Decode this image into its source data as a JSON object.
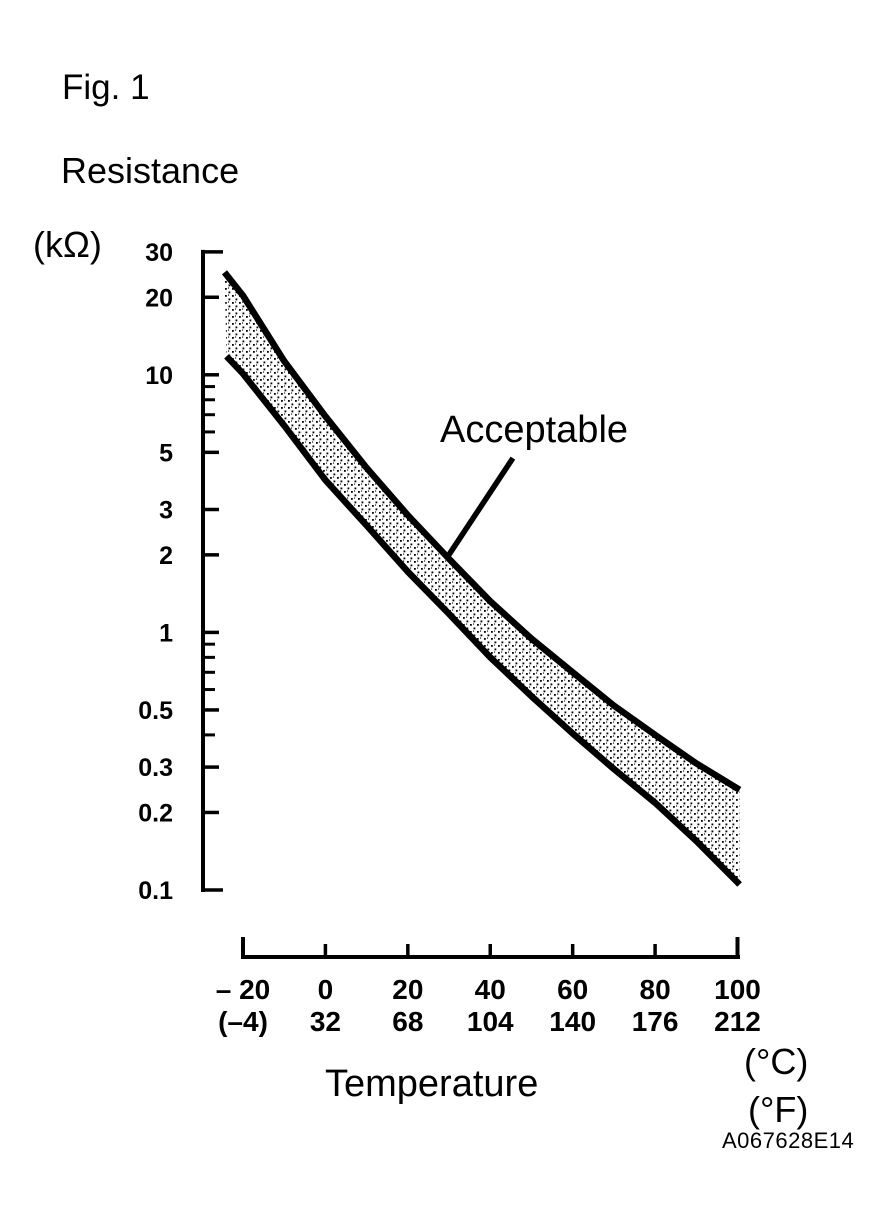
{
  "figure": {
    "fig_label": "Fig. 1",
    "code": "A067628E14"
  },
  "colors": {
    "ink": "#000000",
    "paper": "#ffffff"
  },
  "chart_data": {
    "type": "area",
    "title": "",
    "ylabel": "Resistance",
    "y_unit": "(kΩ)",
    "xlabel": "Temperature",
    "x_unit_c": "(°C)",
    "x_unit_f": "(°F)",
    "annotation": "Acceptable",
    "y_scale": "log",
    "ylim": [
      0.1,
      30
    ],
    "xlim_celsius": [
      -20,
      100
    ],
    "grid": false,
    "legend": "none",
    "y_ticks_major": [
      {
        "value": 30,
        "label": "30"
      },
      {
        "value": 20,
        "label": "20"
      },
      {
        "value": 10,
        "label": "10"
      },
      {
        "value": 5,
        "label": "5"
      },
      {
        "value": 3,
        "label": "3"
      },
      {
        "value": 2,
        "label": "2"
      },
      {
        "value": 1,
        "label": "1"
      },
      {
        "value": 0.5,
        "label": "0.5"
      },
      {
        "value": 0.3,
        "label": "0.3"
      },
      {
        "value": 0.2,
        "label": "0.2"
      },
      {
        "value": 0.1,
        "label": "0.1"
      }
    ],
    "y_ticks_minor": [
      9,
      8,
      7,
      6,
      0.9,
      0.8,
      0.7,
      0.6,
      0.4
    ],
    "x_ticks": [
      {
        "t": -20,
        "celsius": "– 20",
        "fahrenheit": "(–4)"
      },
      {
        "t": 0,
        "celsius": "0",
        "fahrenheit": "32"
      },
      {
        "t": 20,
        "celsius": "20",
        "fahrenheit": "68"
      },
      {
        "t": 40,
        "celsius": "40",
        "fahrenheit": "104"
      },
      {
        "t": 60,
        "celsius": "60",
        "fahrenheit": "140"
      },
      {
        "t": 80,
        "celsius": "80",
        "fahrenheit": "176"
      },
      {
        "t": 100,
        "celsius": "100",
        "fahrenheit": "212"
      }
    ],
    "series": [
      {
        "name": "upper_limit",
        "points_celsius_kohm": [
          [
            -24.5,
            25.0
          ],
          [
            -20,
            20.3
          ],
          [
            -10,
            11.3
          ],
          [
            0,
            6.9
          ],
          [
            10,
            4.35
          ],
          [
            20,
            2.85
          ],
          [
            30,
            1.93
          ],
          [
            40,
            1.32
          ],
          [
            50,
            0.945
          ],
          [
            60,
            0.7
          ],
          [
            70,
            0.52
          ],
          [
            80,
            0.4
          ],
          [
            90,
            0.31
          ],
          [
            100.5,
            0.245
          ]
        ]
      },
      {
        "name": "lower_limit",
        "points_celsius_kohm": [
          [
            -24,
            11.8
          ],
          [
            -20,
            10.1
          ],
          [
            -10,
            6.35
          ],
          [
            0,
            3.9
          ],
          [
            10,
            2.6
          ],
          [
            20,
            1.72
          ],
          [
            30,
            1.18
          ],
          [
            40,
            0.8
          ],
          [
            50,
            0.565
          ],
          [
            60,
            0.405
          ],
          [
            70,
            0.295
          ],
          [
            80,
            0.218
          ],
          [
            90,
            0.155
          ],
          [
            100.5,
            0.105
          ]
        ]
      }
    ],
    "band_fill": "stipple-dots",
    "pointer_line_celsius_kohm": [
      [
        29.5,
        1.95
      ],
      [
        45.5,
        4.75
      ]
    ]
  }
}
